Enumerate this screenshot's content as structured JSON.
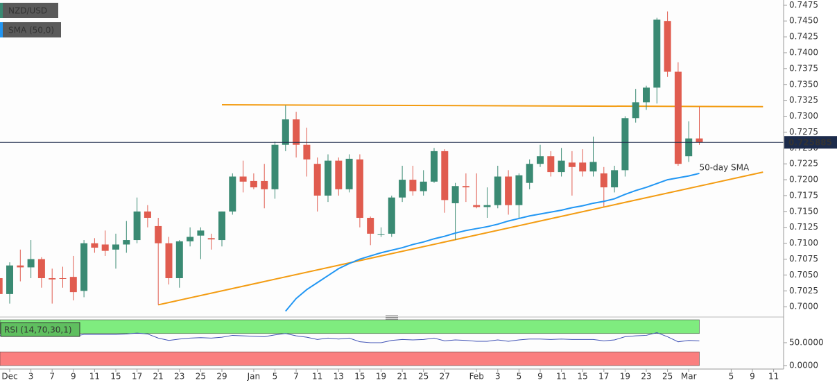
{
  "chart_data": {
    "type": "candlestick",
    "categories": [
      null,
      "Dec",
      null,
      "3",
      null,
      "7",
      null,
      "9",
      null,
      "11",
      null,
      "15",
      null,
      "17",
      null,
      "21",
      null,
      "23",
      null,
      "25",
      null,
      "29",
      null,
      null,
      "Jan",
      null,
      "5",
      null,
      "7",
      null,
      "11",
      null,
      "13",
      null,
      "15",
      null,
      "19",
      null,
      "21",
      null,
      "25",
      null,
      "27",
      null,
      null,
      "Feb",
      null,
      "3",
      null,
      "5",
      null,
      "9",
      null,
      "11",
      null,
      "15",
      null,
      "17",
      null,
      "19",
      null,
      "23",
      null,
      "25",
      null,
      "Mar",
      null,
      null,
      null,
      "5",
      null,
      "9",
      null,
      "11"
    ],
    "series": [
      {
        "name": "NZD/USD",
        "type": "candlestick",
        "up_color": "#3a8a73",
        "down_color": "#e05c4f",
        "legend_color": "#3a8a73",
        "open": [
          0.7045,
          0.702,
          0.7065,
          0.7062,
          0.7075,
          0.7045,
          0.7045,
          0.7047,
          0.7025,
          0.71,
          0.7098,
          0.709,
          0.7098,
          0.7105,
          0.715,
          0.7127,
          0.71,
          0.7045,
          0.7103,
          0.7112,
          0.7108,
          0.7105,
          0.715,
          0.7205,
          0.7198,
          0.7198,
          0.7185,
          0.7255,
          0.7295,
          0.7255,
          0.7225,
          0.7175,
          0.723,
          0.7185,
          0.7232,
          0.714,
          0.7113,
          0.7115,
          0.7172,
          0.72,
          0.7182,
          0.7197,
          0.7245,
          0.7163,
          0.719,
          0.716,
          0.7157,
          0.716,
          0.7205,
          0.716,
          0.7195,
          0.7225,
          0.7237,
          0.7212,
          0.7227,
          0.7227,
          0.7213,
          0.721,
          0.7188,
          0.7215,
          0.7297,
          0.7322,
          0.7345,
          0.745,
          0.737,
          0.7237,
          0.7265,
          null,
          null,
          null,
          null,
          null,
          null,
          null
        ],
        "high": [
          0.7058,
          0.707,
          0.709,
          0.7105,
          0.7078,
          0.706,
          0.7063,
          0.708,
          0.7105,
          0.7108,
          0.712,
          0.7115,
          0.7135,
          0.7172,
          0.716,
          0.714,
          0.711,
          0.7105,
          0.7125,
          0.7125,
          0.7115,
          0.715,
          0.721,
          0.723,
          0.721,
          0.7225,
          0.726,
          0.7317,
          0.7307,
          0.7282,
          0.7235,
          0.724,
          0.7235,
          0.724,
          0.724,
          0.7142,
          0.7125,
          0.7175,
          0.7222,
          0.7222,
          0.7215,
          0.725,
          0.7248,
          0.7195,
          0.721,
          0.721,
          0.7188,
          0.7222,
          0.7215,
          0.721,
          0.7232,
          0.7255,
          0.7245,
          0.725,
          0.7245,
          0.7248,
          0.7268,
          0.722,
          0.7222,
          0.73,
          0.7343,
          0.7348,
          0.7455,
          0.7465,
          0.7385,
          0.7292,
          0.7315,
          null,
          null,
          null,
          null,
          null,
          null,
          null
        ],
        "low": [
          0.7008,
          0.7005,
          0.704,
          0.7045,
          0.703,
          0.7005,
          0.703,
          0.701,
          0.7015,
          0.7085,
          0.708,
          0.706,
          0.7085,
          0.71,
          0.7125,
          0.7003,
          0.7035,
          0.703,
          0.7095,
          0.7075,
          0.709,
          0.7095,
          0.7145,
          0.718,
          0.7185,
          0.7155,
          0.717,
          0.7245,
          0.7235,
          0.7205,
          0.715,
          0.7165,
          0.7175,
          0.718,
          0.7125,
          0.7097,
          0.711,
          0.711,
          0.7165,
          0.7175,
          0.7175,
          0.7195,
          0.7148,
          0.7105,
          0.7165,
          0.7155,
          0.714,
          0.7155,
          0.7145,
          0.714,
          0.7185,
          0.722,
          0.7205,
          0.7205,
          0.7175,
          0.7205,
          0.7205,
          0.7158,
          0.718,
          0.7205,
          0.729,
          0.731,
          0.732,
          0.7362,
          0.7222,
          0.7228,
          0.7255,
          null,
          null,
          null,
          null,
          null,
          null,
          null
        ],
        "close": [
          0.702,
          0.7065,
          0.7062,
          0.7075,
          0.7045,
          0.7043,
          0.7044,
          0.7023,
          0.71,
          0.7093,
          0.7088,
          0.7098,
          0.7105,
          0.715,
          0.714,
          0.71,
          0.7045,
          0.7103,
          0.711,
          0.712,
          0.7106,
          0.715,
          0.7205,
          0.7197,
          0.7188,
          0.7185,
          0.7255,
          0.7295,
          0.7255,
          0.7232,
          0.7175,
          0.723,
          0.7185,
          0.7233,
          0.714,
          0.7115,
          0.7114,
          0.7172,
          0.72,
          0.7182,
          0.7197,
          0.7245,
          0.7168,
          0.719,
          0.7188,
          0.7157,
          0.716,
          0.7205,
          0.716,
          0.7207,
          0.7225,
          0.7237,
          0.7212,
          0.723,
          0.722,
          0.7213,
          0.7228,
          0.7188,
          0.7215,
          0.7297,
          0.7322,
          0.7345,
          0.7452,
          0.737,
          0.7225,
          0.7265,
          0.725885,
          null,
          null,
          null,
          null,
          null,
          null,
          null
        ]
      },
      {
        "name": "SMA (50,0)",
        "type": "line",
        "color": "#2196f3",
        "values": [
          null,
          null,
          null,
          null,
          null,
          null,
          null,
          null,
          null,
          null,
          null,
          null,
          null,
          null,
          null,
          null,
          null,
          null,
          null,
          null,
          null,
          null,
          null,
          null,
          null,
          null,
          null,
          0.6993,
          0.7013,
          0.7027,
          0.7038,
          0.7049,
          0.706,
          0.7068,
          0.7075,
          0.708,
          0.7085,
          0.7089,
          0.7093,
          0.7098,
          0.7102,
          0.7107,
          0.7111,
          0.7116,
          0.712,
          0.7123,
          0.7126,
          0.713,
          0.7135,
          0.7139,
          0.7143,
          0.7146,
          0.7149,
          0.7152,
          0.7156,
          0.7159,
          0.7163,
          0.7166,
          0.717,
          0.7177,
          0.7183,
          0.7188,
          0.7194,
          0.72,
          0.7203,
          0.7206,
          0.721,
          null,
          null,
          null,
          null,
          null,
          null,
          null
        ]
      }
    ],
    "annotation": "50-day SMA",
    "annotation_color": "#2196f3",
    "last_price_color": "#1c2b4b",
    "trendlines": [
      {
        "color": "#f39c12",
        "x": [
          21,
          72
        ],
        "y": [
          0.7318,
          0.7315
        ]
      },
      {
        "color": "#f39c12",
        "x": [
          15,
          72
        ],
        "y": [
          0.7003,
          0.7212
        ]
      }
    ],
    "ylim": [
      0.6986,
      0.7483
    ],
    "yticks": [
      {
        "value": 0.7,
        "label": "0.7000"
      },
      0.7025,
      {
        "value": 0.705,
        "label": "0.7050"
      },
      0.7075,
      {
        "value": 0.71,
        "label": "0.7100"
      },
      0.7125,
      {
        "value": 0.715,
        "label": "0.7150"
      },
      0.7175,
      {
        "value": 0.72,
        "label": "0.7200"
      },
      0.7225,
      {
        "value": 0.725,
        "label": "0.7250"
      },
      0.7275,
      {
        "value": 0.73,
        "label": "0.7300"
      },
      0.7325,
      {
        "value": 0.735,
        "label": "0.7350"
      },
      0.7375,
      {
        "value": 0.74,
        "label": "0.7400"
      },
      0.7425,
      {
        "value": 0.745,
        "label": "0.7450"
      },
      0.7475
    ],
    "grid": true,
    "rsi": {
      "name": "RSI (14,70,30,1)",
      "color": "#3f51b5",
      "values": [
        66,
        69,
        68,
        70,
        66,
        65,
        66,
        64,
        68,
        68,
        68,
        68,
        69,
        71,
        69,
        60,
        55,
        58,
        60,
        61,
        60,
        62,
        66,
        65,
        64,
        63,
        67,
        70,
        65,
        62,
        57,
        60,
        58,
        60,
        52,
        50,
        50,
        55,
        57,
        56,
        57,
        60,
        54,
        56,
        55,
        53,
        53,
        56,
        53,
        56,
        58,
        58,
        57,
        58,
        57,
        57,
        57,
        54,
        56,
        63,
        65,
        66,
        72,
        63,
        52,
        55,
        54,
        null,
        null,
        null,
        null,
        null,
        null,
        null
      ],
      "ylim": [
        0,
        100
      ],
      "yticks": [
        {
          "value": 50,
          "label": "50.0000"
        },
        {
          "value": 0,
          "label": "0.0000"
        }
      ],
      "overbought": 70,
      "oversold": 30,
      "overbought_color": "#7fec7f",
      "oversold_color": "#fa7f7f"
    }
  }
}
